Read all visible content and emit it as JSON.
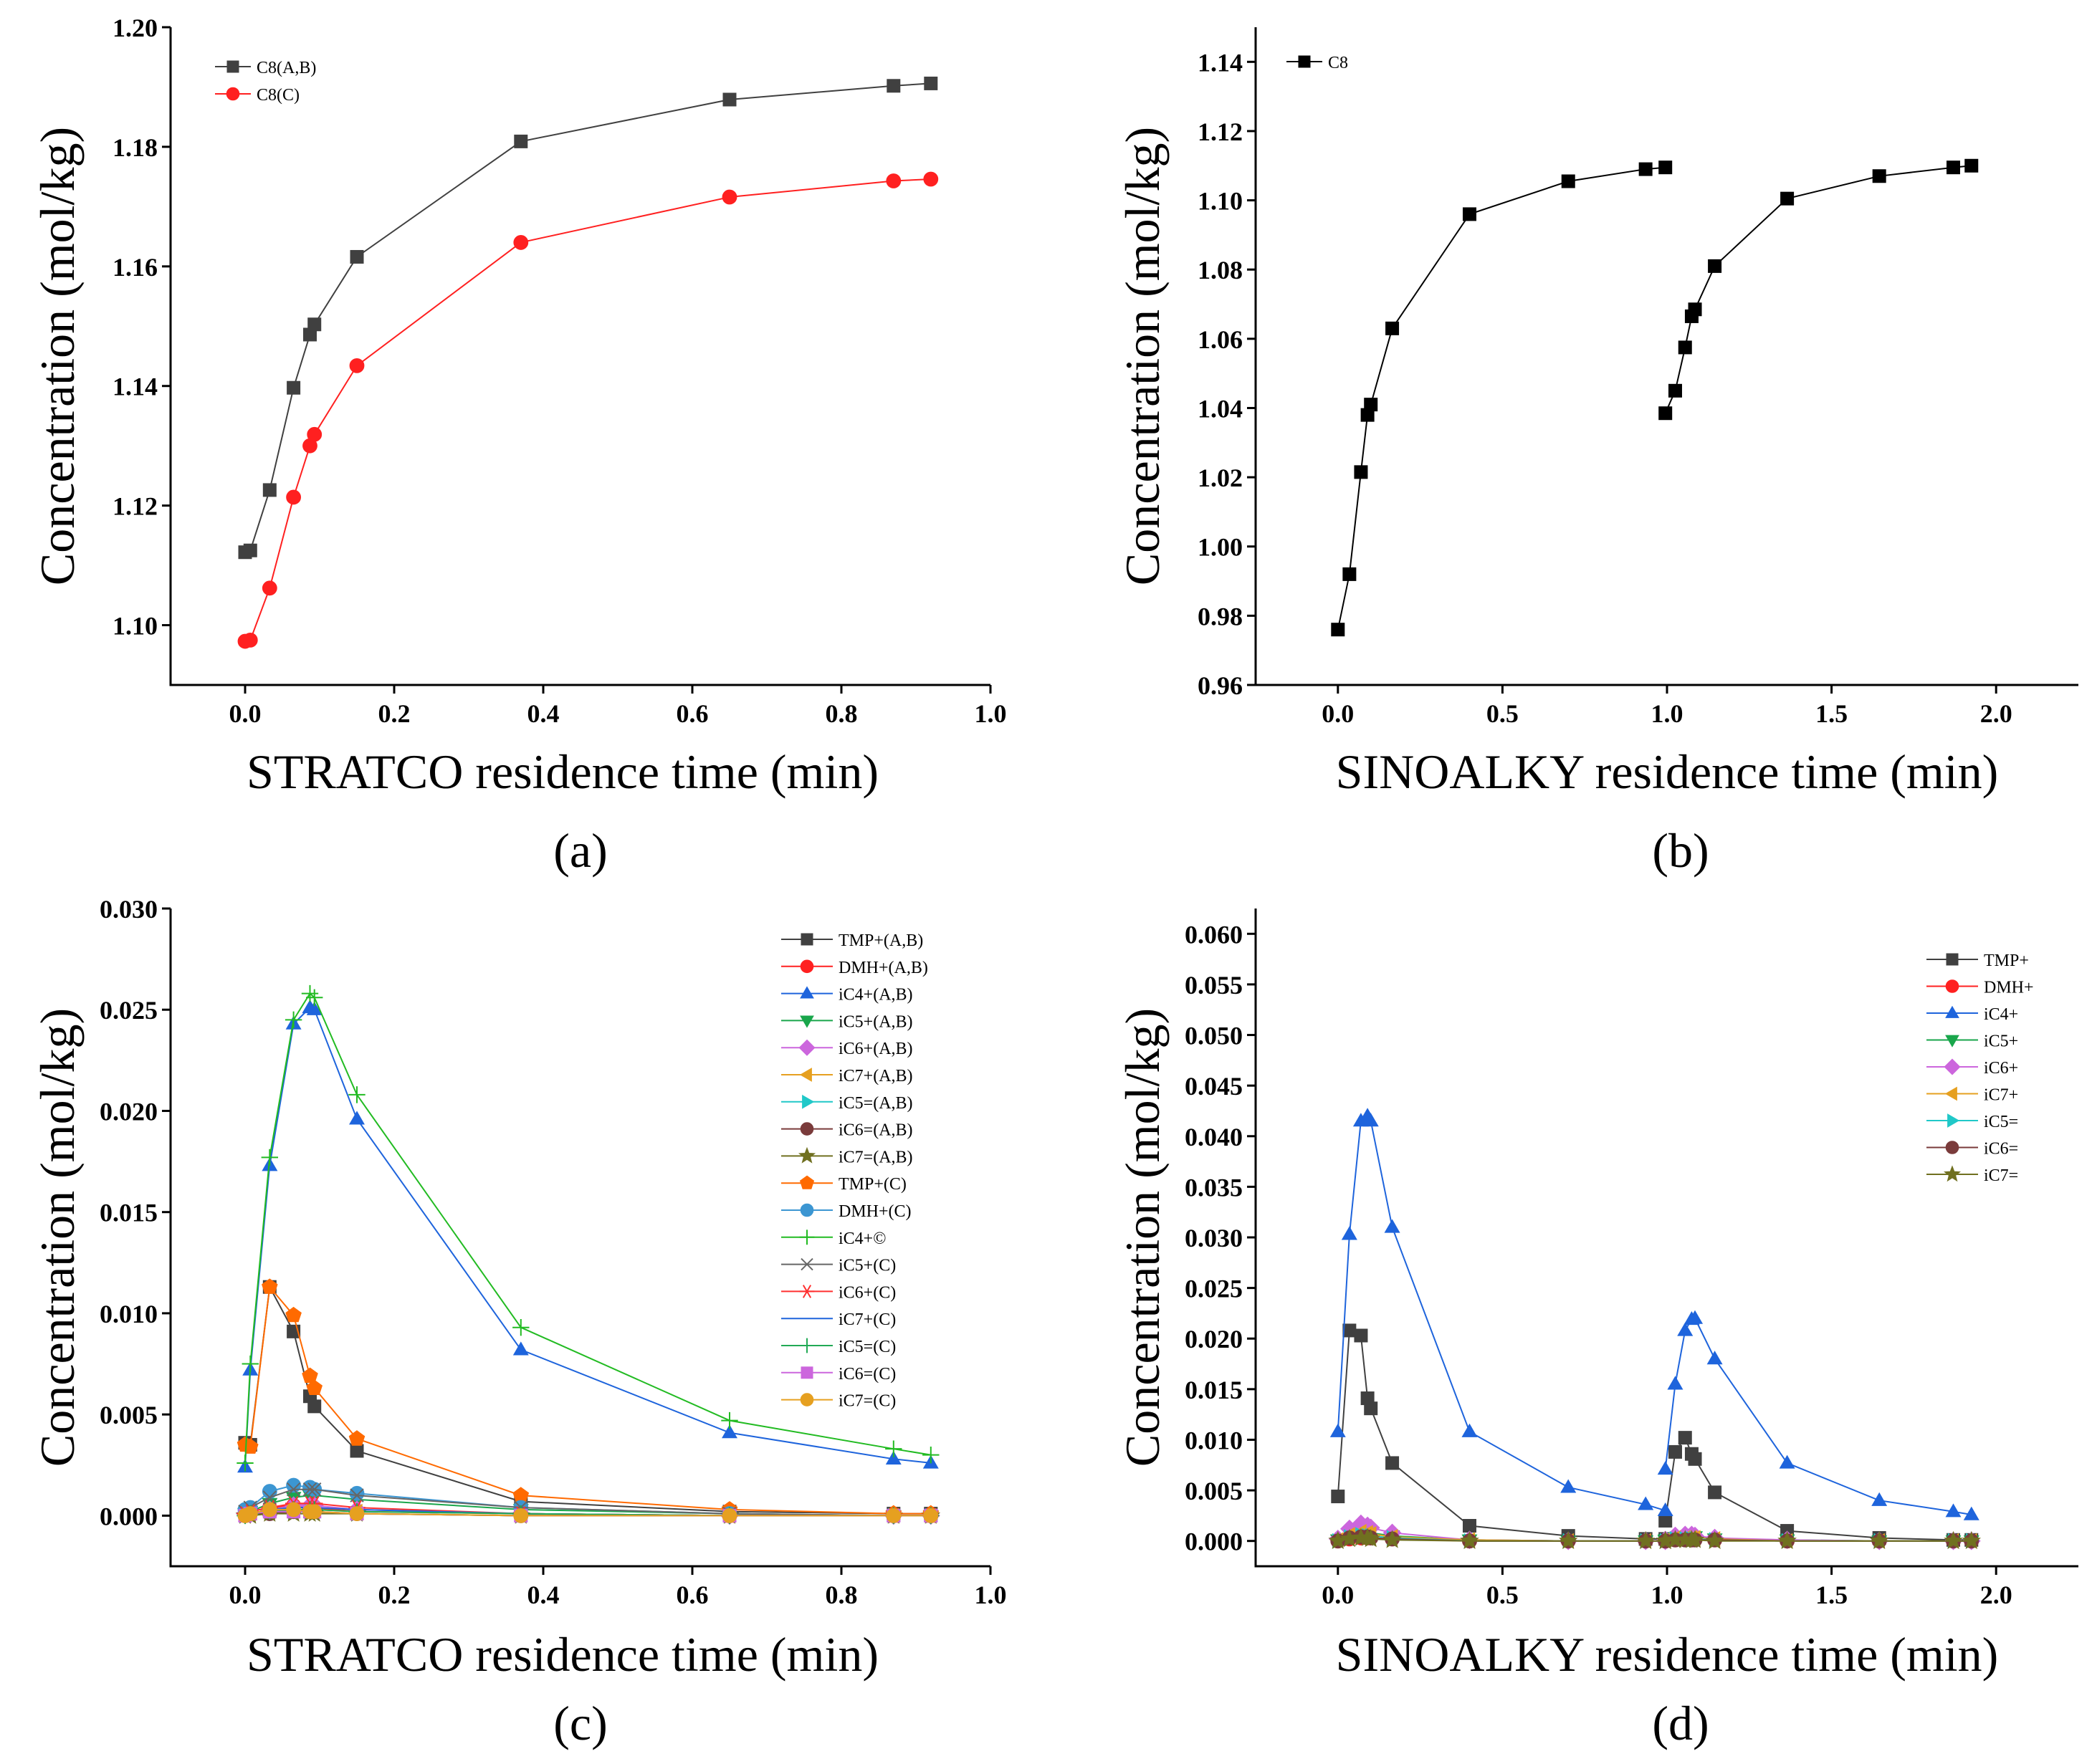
{
  "figure": {
    "background": "#ffffff"
  },
  "chart_data": [
    {
      "panel": "(a)",
      "type": "line",
      "xlabel": "STRATCO residence time (min)",
      "ylabel": "Concentration (mol/kg)",
      "xlim": [
        -0.1,
        1.0
      ],
      "ylim": [
        1.09,
        1.2
      ],
      "xticks": [
        0.0,
        0.2,
        0.4,
        0.6,
        0.8,
        1.0
      ],
      "yticks": [
        1.1,
        1.12,
        1.14,
        1.16,
        1.18,
        1.2
      ],
      "xdec": 1,
      "ydec": 2,
      "legend": "top-left",
      "series": [
        {
          "name": "C8(A,B)",
          "color": "#404040",
          "marker": "square",
          "x": [
            0.0,
            0.007,
            0.033,
            0.065,
            0.087,
            0.093,
            0.15,
            0.37,
            0.65,
            0.87,
            0.92
          ],
          "y": [
            1.1122,
            1.1125,
            1.1226,
            1.1397,
            1.1486,
            1.1503,
            1.1616,
            1.1809,
            1.1879,
            1.1902,
            1.1906
          ]
        },
        {
          "name": "C8(C)",
          "color": "#ff2020",
          "marker": "circle",
          "x": [
            0.0,
            0.007,
            0.033,
            0.065,
            0.087,
            0.093,
            0.15,
            0.37,
            0.65,
            0.87,
            0.92
          ],
          "y": [
            1.0973,
            1.0975,
            1.1062,
            1.1214,
            1.13,
            1.1319,
            1.1434,
            1.164,
            1.1716,
            1.1743,
            1.1746
          ]
        }
      ]
    },
    {
      "panel": "(b)",
      "type": "line",
      "xlabel": "SINOALKY residence time (min)",
      "ylabel": "Concentration (mol/kg)",
      "xlim": [
        -0.25,
        2.25
      ],
      "ylim": [
        0.96,
        1.15
      ],
      "xticks": [
        0.0,
        0.5,
        1.0,
        1.5,
        2.0
      ],
      "yticks": [
        0.96,
        0.98,
        1.0,
        1.02,
        1.04,
        1.06,
        1.08,
        1.1,
        1.12,
        1.14
      ],
      "xdec": 1,
      "ydec": 2,
      "legend": "top-left",
      "series": [
        {
          "name": "C8",
          "color": "#000000",
          "marker": "square",
          "x": [
            0.0,
            0.035,
            0.07,
            0.09,
            0.1,
            0.165,
            0.4,
            0.7,
            0.935,
            0.995,
            null,
            0.995,
            1.025,
            1.055,
            1.075,
            1.085,
            1.145,
            1.365,
            1.645,
            1.87,
            1.925
          ],
          "y": [
            0.976,
            0.992,
            1.0215,
            1.038,
            1.041,
            1.063,
            1.096,
            1.1055,
            1.109,
            1.1095,
            null,
            1.0385,
            1.045,
            1.0575,
            1.0665,
            1.0685,
            1.081,
            1.1005,
            1.107,
            1.1095,
            1.11
          ]
        }
      ]
    },
    {
      "panel": "(c)",
      "type": "line",
      "xlabel": "STRATCO residence time (min)",
      "ylabel": "Concentration (mol/kg)",
      "xlim": [
        -0.1,
        1.0
      ],
      "ylim": [
        -0.0025,
        0.03
      ],
      "xticks": [
        0.0,
        0.2,
        0.4,
        0.6,
        0.8,
        1.0
      ],
      "yticks": [
        0.0,
        0.005,
        0.01,
        0.015,
        0.02,
        0.025,
        0.03
      ],
      "xdec": 1,
      "ydec": 3,
      "legend": "top-right",
      "x": [
        0.0,
        0.007,
        0.033,
        0.065,
        0.087,
        0.093,
        0.15,
        0.37,
        0.65,
        0.87,
        0.92
      ],
      "series": [
        {
          "name": "TMP+(A,B)",
          "color": "#404040",
          "marker": "square",
          "y": [
            0.0036,
            0.0035,
            0.0113,
            0.0091,
            0.0059,
            0.0054,
            0.0032,
            0.0007,
            0.0002,
            0.0001,
            0.0001
          ]
        },
        {
          "name": "DMH+(A,B)",
          "color": "#ff2020",
          "marker": "circle",
          "y": [
            0.0001,
            0.0002,
            0.0004,
            0.0005,
            0.0004,
            0.0004,
            0.0002,
            0.0001,
            0.0,
            0.0,
            0.0
          ]
        },
        {
          "name": "iC4+(A,B)",
          "color": "#1e64dc",
          "marker": "triangle-up",
          "y": [
            0.0024,
            0.0072,
            0.0173,
            0.0243,
            0.0251,
            0.025,
            0.0196,
            0.0082,
            0.0041,
            0.0028,
            0.0026
          ]
        },
        {
          "name": "iC5+(A,B)",
          "color": "#19a64b",
          "marker": "triangle-down",
          "y": [
            0.0001,
            0.0002,
            0.0006,
            0.0009,
            0.001,
            0.001,
            0.0008,
            0.0003,
            0.0001,
            0.0,
            0.0
          ]
        },
        {
          "name": "iC6+(A,B)",
          "color": "#cc66dd",
          "marker": "diamond",
          "y": [
            0.0001,
            0.0001,
            0.0003,
            0.0005,
            0.0005,
            0.0005,
            0.0003,
            0.0001,
            0.0,
            0.0,
            0.0
          ]
        },
        {
          "name": "iC7+(A,B)",
          "color": "#e6a020",
          "marker": "triangle-left",
          "y": [
            0.0,
            0.0001,
            0.0002,
            0.0003,
            0.0003,
            0.0003,
            0.0002,
            0.0001,
            0.0,
            0.0,
            0.0
          ]
        },
        {
          "name": "iC5=(A,B)",
          "color": "#20c8c8",
          "marker": "triangle-right",
          "y": [
            0.0,
            0.0001,
            0.0002,
            0.0002,
            0.0002,
            0.0002,
            0.0001,
            0.0,
            0.0,
            0.0,
            0.0
          ]
        },
        {
          "name": "iC6=(A,B)",
          "color": "#7a3b3b",
          "marker": "circle",
          "y": [
            0.0,
            0.0001,
            0.0001,
            0.0002,
            0.0002,
            0.0002,
            0.0001,
            0.0,
            0.0,
            0.0,
            0.0
          ]
        },
        {
          "name": "iC7=(A,B)",
          "color": "#707020",
          "marker": "star",
          "y": [
            0.0,
            0.0,
            0.0001,
            0.0001,
            0.0001,
            0.0001,
            0.0001,
            0.0,
            0.0,
            0.0,
            0.0
          ]
        },
        {
          "name": "TMP+(C)",
          "color": "#ff6a00",
          "marker": "pentagon",
          "y": [
            0.0035,
            0.0034,
            0.0113,
            0.0099,
            0.0069,
            0.0063,
            0.0038,
            0.001,
            0.0003,
            0.0001,
            0.0001
          ]
        },
        {
          "name": "DMH+(C)",
          "color": "#3c96d2",
          "marker": "circle",
          "y": [
            0.0003,
            0.0004,
            0.0012,
            0.0015,
            0.0014,
            0.0013,
            0.0011,
            0.0004,
            0.0001,
            0.0,
            0.0
          ]
        },
        {
          "name": "iC4+©",
          "color": "#22bb22",
          "marker": "plus",
          "y": [
            0.0026,
            0.0075,
            0.0177,
            0.0245,
            0.0258,
            0.0256,
            0.0208,
            0.0093,
            0.0047,
            0.0033,
            0.003
          ]
        },
        {
          "name": "iC5+(C)",
          "color": "#666666",
          "marker": "x",
          "y": [
            0.0002,
            0.0004,
            0.0009,
            0.0013,
            0.0013,
            0.0013,
            0.001,
            0.0004,
            0.0001,
            0.0,
            0.0
          ]
        },
        {
          "name": "iC6+(C)",
          "color": "#ff3030",
          "marker": "asterisk",
          "y": [
            0.0001,
            0.0002,
            0.0004,
            0.0006,
            0.0006,
            0.0006,
            0.0004,
            0.0001,
            0.0,
            0.0,
            0.0
          ]
        },
        {
          "name": "iC7+(C)",
          "color": "#1e64dc",
          "marker": "none",
          "y": [
            0.0001,
            0.0001,
            0.0003,
            0.0004,
            0.0004,
            0.0004,
            0.0003,
            0.0001,
            0.0,
            0.0,
            0.0
          ]
        },
        {
          "name": "iC5=(C)",
          "color": "#22aa55",
          "marker": "plus",
          "y": [
            0.0,
            0.0001,
            0.0002,
            0.0003,
            0.0003,
            0.0003,
            0.0002,
            0.0001,
            0.0,
            0.0,
            0.0
          ]
        },
        {
          "name": "iC6=(C)",
          "color": "#cc66dd",
          "marker": "square",
          "y": [
            0.0,
            0.0001,
            0.0002,
            0.0002,
            0.0002,
            0.0002,
            0.0001,
            0.0,
            0.0,
            0.0,
            0.0
          ]
        },
        {
          "name": "iC7=(C)",
          "color": "#e6a020",
          "marker": "circle",
          "y": [
            0.0,
            0.0001,
            0.0003,
            0.0003,
            0.0002,
            0.0002,
            0.0001,
            0.0,
            0.0,
            0.0,
            0.0
          ]
        }
      ]
    },
    {
      "panel": "(d)",
      "type": "line",
      "xlabel": "SINOALKY residence time (min)",
      "ylabel": "Concentration (mol/kg)",
      "xlim": [
        -0.25,
        2.25
      ],
      "ylim": [
        -0.0025,
        0.0625
      ],
      "xticks": [
        0.0,
        0.5,
        1.0,
        1.5,
        2.0
      ],
      "yticks": [
        0.0,
        0.005,
        0.01,
        0.015,
        0.02,
        0.025,
        0.03,
        0.035,
        0.04,
        0.045,
        0.05,
        0.055,
        0.06
      ],
      "xdec": 1,
      "ydec": 3,
      "legend": "top-right",
      "x": [
        0.0,
        0.035,
        0.07,
        0.09,
        0.1,
        0.165,
        0.4,
        0.7,
        0.935,
        0.995,
        null,
        0.995,
        1.025,
        1.055,
        1.075,
        1.085,
        1.145,
        1.365,
        1.645,
        1.87,
        1.925
      ],
      "series": [
        {
          "name": "TMP+",
          "color": "#404040",
          "marker": "square",
          "y": [
            0.0044,
            0.0208,
            0.0203,
            0.0141,
            0.0131,
            0.0077,
            0.0015,
            0.0005,
            0.0002,
            0.0002,
            null,
            0.002,
            0.0088,
            0.0102,
            0.0086,
            0.0081,
            0.0048,
            0.001,
            0.0003,
            0.0001,
            0.0001
          ]
        },
        {
          "name": "DMH+",
          "color": "#ff2020",
          "marker": "circle",
          "y": [
            0.0,
            0.0002,
            0.0003,
            0.0003,
            0.0003,
            0.0002,
            0.0,
            0.0,
            0.0,
            0.0,
            null,
            0.0,
            0.0001,
            0.0002,
            0.0002,
            0.0002,
            0.0001,
            0.0,
            0.0,
            0.0,
            0.0
          ]
        },
        {
          "name": "iC4+",
          "color": "#1e64dc",
          "marker": "triangle-up",
          "y": [
            0.0108,
            0.0303,
            0.0415,
            0.042,
            0.0415,
            0.031,
            0.0108,
            0.0053,
            0.0036,
            0.003,
            null,
            0.0071,
            0.0155,
            0.0208,
            0.0219,
            0.022,
            0.018,
            0.0077,
            0.004,
            0.0029,
            0.0026
          ]
        },
        {
          "name": "iC5+",
          "color": "#19a64b",
          "marker": "triangle-down",
          "y": [
            0.0001,
            0.0007,
            0.001,
            0.0009,
            0.0008,
            0.0005,
            0.0001,
            0.0,
            0.0,
            0.0,
            null,
            0.0001,
            0.0003,
            0.0004,
            0.0004,
            0.0004,
            0.0002,
            0.0001,
            0.0,
            0.0,
            0.0
          ]
        },
        {
          "name": "iC6+",
          "color": "#cc66dd",
          "marker": "diamond",
          "y": [
            0.0002,
            0.0012,
            0.0017,
            0.0015,
            0.0013,
            0.0008,
            0.0001,
            0.0,
            0.0,
            0.0,
            null,
            0.0001,
            0.0005,
            0.0006,
            0.0006,
            0.0005,
            0.0003,
            0.0001,
            0.0,
            0.0,
            0.0
          ]
        },
        {
          "name": "iC7+",
          "color": "#e6a020",
          "marker": "triangle-left",
          "y": [
            0.0001,
            0.0006,
            0.0009,
            0.0008,
            0.0007,
            0.0004,
            0.0001,
            0.0,
            0.0,
            0.0,
            null,
            0.0001,
            0.0003,
            0.0003,
            0.0003,
            0.0003,
            0.0002,
            0.0,
            0.0,
            0.0,
            0.0
          ]
        },
        {
          "name": "iC5=",
          "color": "#20c8c8",
          "marker": "triangle-right",
          "y": [
            0.0,
            0.0004,
            0.0006,
            0.0005,
            0.0005,
            0.0003,
            0.0,
            0.0,
            0.0,
            0.0,
            null,
            0.0,
            0.0002,
            0.0002,
            0.0002,
            0.0002,
            0.0001,
            0.0,
            0.0,
            0.0,
            0.0
          ]
        },
        {
          "name": "iC6=",
          "color": "#7a3b3b",
          "marker": "circle",
          "y": [
            0.0,
            0.0003,
            0.0004,
            0.0004,
            0.0003,
            0.0002,
            0.0,
            0.0,
            0.0,
            0.0,
            null,
            0.0,
            0.0001,
            0.0001,
            0.0001,
            0.0001,
            0.0001,
            0.0,
            0.0,
            0.0,
            0.0
          ]
        },
        {
          "name": "iC7=",
          "color": "#707020",
          "marker": "star",
          "y": [
            0.0,
            0.0002,
            0.0003,
            0.0003,
            0.0002,
            0.0001,
            0.0,
            0.0,
            0.0,
            0.0,
            null,
            0.0,
            0.0001,
            0.0001,
            0.0001,
            0.0001,
            0.0,
            0.0,
            0.0,
            0.0,
            0.0
          ]
        }
      ]
    }
  ]
}
